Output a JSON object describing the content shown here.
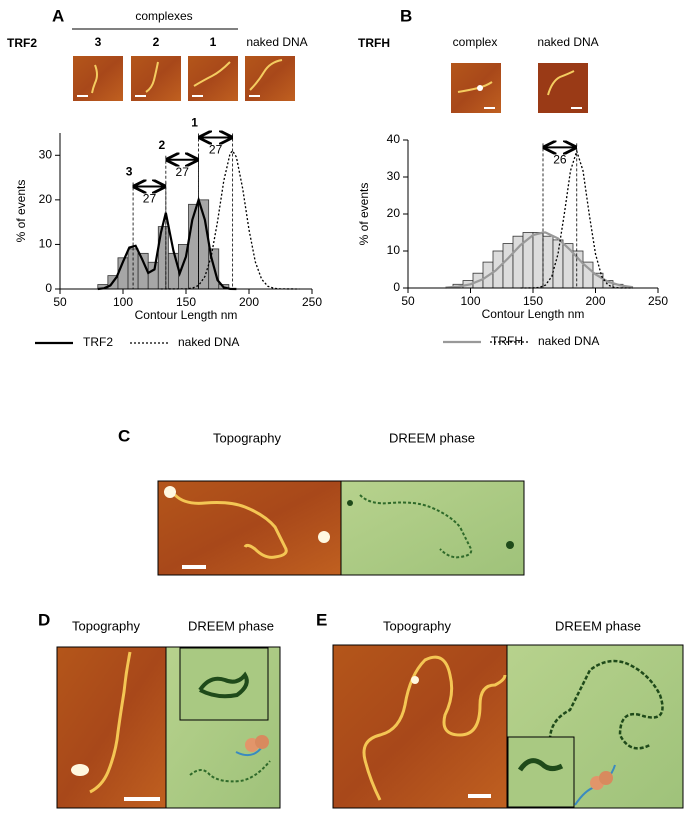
{
  "chart_data": [
    {
      "type": "histogram",
      "xlabel": "Contour Length nm",
      "ylabel": "% of events",
      "bins": [
        80,
        88,
        96,
        104,
        112,
        120,
        128,
        136,
        144,
        152,
        160,
        168,
        176,
        184
      ],
      "values": [
        1,
        3,
        7,
        9,
        8,
        6,
        14,
        8,
        10,
        19,
        20,
        9,
        1
      ],
      "color": "#a6a6a6",
      "xlim": [
        50,
        250
      ],
      "xticks": [
        50,
        100,
        150,
        200,
        250
      ],
      "ylim": [
        0,
        35
      ],
      "yticks": [
        0,
        10,
        20,
        30
      ],
      "legend": "bottom",
      "series": [
        {
          "name": "TRF2",
          "color": "#000000",
          "dash": "solid",
          "x": [
            80,
            85,
            90,
            95,
            100,
            105,
            110,
            115,
            120,
            125,
            130,
            134,
            140,
            145,
            150,
            155,
            160,
            165,
            170,
            175,
            180,
            185,
            190
          ],
          "values": [
            0,
            0.16,
            0.8,
            2.7,
            6.1,
            9.3,
            9.7,
            6.8,
            3.6,
            4.4,
            12.5,
            17.1,
            8.6,
            3.5,
            7.3,
            15.5,
            20,
            15.5,
            7.2,
            2,
            0.34,
            0.03,
            0
          ]
        },
        {
          "name": "naked DNA",
          "color": "#000000",
          "dash": "dotted",
          "x": [
            130,
            150,
            155,
            160,
            165,
            170,
            175,
            180,
            185,
            187,
            190,
            195,
            200,
            205,
            210,
            215,
            220,
            225,
            240
          ],
          "values": [
            0,
            0.03,
            0.19,
            0.8,
            2.8,
            7.3,
            15.1,
            24.3,
            30.4,
            31,
            29.6,
            22.5,
            13.3,
            6.1,
            2.2,
            0.6,
            0.14,
            0.03,
            0
          ]
        }
      ],
      "annotations": [
        {
          "label": "3",
          "value": 27,
          "x": [
            108,
            134
          ],
          "y": 23
        },
        {
          "label": "2",
          "value": 27,
          "x": [
            134,
            160
          ],
          "y": 29
        },
        {
          "label": "1",
          "value": 27,
          "x": [
            160,
            187
          ],
          "y": 34
        }
      ]
    },
    {
      "type": "histogram",
      "xlabel": "Contour Length nm",
      "ylabel": "% of events",
      "bins": [
        86,
        94,
        102,
        110,
        118,
        126,
        134,
        142,
        150,
        158,
        166,
        174,
        182,
        190,
        198,
        206,
        214,
        222
      ],
      "values": [
        1,
        2,
        4,
        7,
        10,
        12,
        14,
        15,
        15,
        14,
        13,
        12,
        10,
        7,
        4,
        2,
        1
      ],
      "color": "#dcdcdc",
      "xlim": [
        50,
        250
      ],
      "xticks": [
        50,
        100,
        150,
        200,
        250
      ],
      "ylim": [
        0,
        40
      ],
      "yticks": [
        0,
        10,
        20,
        30,
        40
      ],
      "legend": "bottom",
      "series": [
        {
          "name": "TRFH",
          "color": "#999999",
          "dash": "solid",
          "x": [
            80,
            90,
            100,
            110,
            120,
            130,
            140,
            150,
            158,
            160,
            170,
            180,
            190,
            200,
            210,
            220,
            230
          ],
          "values": [
            0.12,
            0.37,
            1,
            2.4,
            4.7,
            8,
            11.6,
            14.3,
            15,
            15,
            13.4,
            10.2,
            6.6,
            3.7,
            1.7,
            0.7,
            0.2
          ]
        },
        {
          "name": "naked DNA",
          "color": "#000000",
          "dash": "dotted",
          "x": [
            140,
            150,
            155,
            160,
            165,
            170,
            175,
            180,
            185,
            190,
            195,
            200,
            205,
            210,
            215,
            220,
            230
          ],
          "values": [
            0,
            0.02,
            0.14,
            0.78,
            3.1,
            9.2,
            19.9,
            31.7,
            37,
            31.7,
            19.9,
            9.2,
            3.1,
            0.78,
            0.14,
            0.02,
            0
          ]
        }
      ],
      "annotations": [
        {
          "value": 26,
          "x": [
            158,
            185
          ],
          "y": 38
        }
      ]
    }
  ],
  "figure": {
    "A": {
      "letter": "A",
      "construct": "TRF2",
      "group": "complexes",
      "samples": [
        "3",
        "2",
        "1",
        "naked DNA"
      ]
    },
    "B": {
      "letter": "B",
      "construct": "TRFH",
      "samples": [
        "complex",
        "naked DNA"
      ]
    },
    "C": {
      "letter": "C",
      "images": [
        "Topography",
        "DREEM phase"
      ]
    },
    "D": {
      "letter": "D",
      "images": [
        "Topography",
        "DREEM phase"
      ]
    },
    "E": {
      "letter": "E",
      "images": [
        "Topography",
        "DREEM phase"
      ]
    }
  }
}
